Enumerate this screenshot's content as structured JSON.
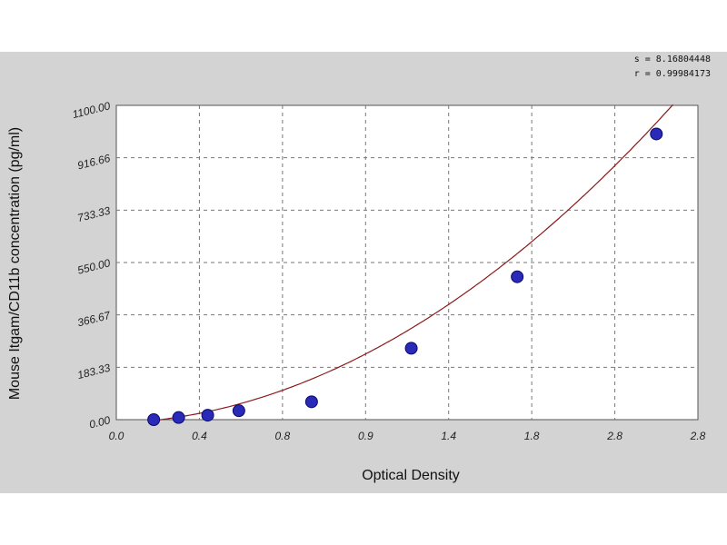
{
  "stats": {
    "line1": "s = 8.16804448",
    "line2": "r = 0.99984173"
  },
  "chart_data": {
    "type": "scatter",
    "xlabel": "Optical Density",
    "ylabel": "Mouse Itgam/CD11b  concentration (pg/ml)",
    "xlim": [
      0.0,
      2.8
    ],
    "ylim": [
      0,
      1100
    ],
    "x_ticks": [
      "0.0",
      "0.4",
      "0.8",
      "0.9",
      "1.4",
      "1.8",
      "2.8",
      "2.8"
    ],
    "y_ticks": [
      "0.00",
      "183.33",
      "366.67",
      "550.00",
      "733.33",
      "916.66",
      "1100.00"
    ],
    "grid": true,
    "series": [
      {
        "points": [
          [
            0.18,
            0
          ],
          [
            0.3,
            7.5
          ],
          [
            0.44,
            15.6
          ],
          [
            0.59,
            31.3
          ],
          [
            0.94,
            62.5
          ],
          [
            1.42,
            250
          ],
          [
            1.93,
            500
          ],
          [
            2.6,
            1000
          ]
        ]
      }
    ],
    "fit_curve": {
      "type": "poly2",
      "a": 144.7,
      "b": 28.3,
      "c": -12.5
    }
  }
}
